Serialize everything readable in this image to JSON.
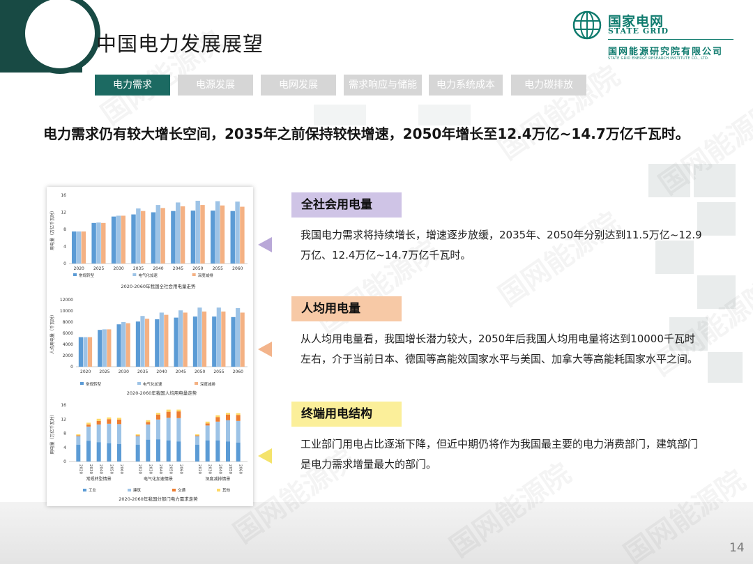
{
  "page": {
    "title": "中国电力发展展望",
    "page_number": "14",
    "headline": "电力需求仍有较大增长空间，2035年之前保持较快增速，2050年增长至12.4万亿~14.7万亿千瓦时。"
  },
  "logo": {
    "company_cn": "国家电网",
    "company_en": "STATE GRID",
    "institute_cn": "国网能源研究院有限公司",
    "institute_en": "STATE GRID ENERGY RESEARCH INSTITUTE CO., LTD."
  },
  "watermark": "国网能源院",
  "tabs": [
    {
      "label": "电力需求",
      "active": true
    },
    {
      "label": "电源发展",
      "active": false
    },
    {
      "label": "电网发展",
      "active": false
    },
    {
      "label": "需求响应与储能",
      "active": false
    },
    {
      "label": "电力系统成本",
      "active": false
    },
    {
      "label": "电力碳排放",
      "active": false
    }
  ],
  "sections": [
    {
      "label": "全社会用电量",
      "color": "#cfc4e6",
      "arrow_color": "#b9a8d8",
      "text": "我国电力需求将持续增长，增速逐步放缓，2035年、2050年分别达到11.5万亿~12.9万亿、12.4万亿~14.7万亿千瓦时。"
    },
    {
      "label": "人均用电量",
      "color": "#f7c9a6",
      "arrow_color": "#f3b48b",
      "text": "从人均用电量看，我国增长潜力较大，2050年后我国人均用电量将达到10000千瓦时左右，介于当前日本、德国等高能效国家水平与美国、加拿大等高能耗国家水平之间。"
    },
    {
      "label": "终端用电结构",
      "color": "#fbef9a",
      "arrow_color": "#f4e36b",
      "text": "工业部门用电占比逐渐下降，但近中期仍将作为我国最主要的电力消费部门，建筑部门是电力需求增量最大的部门。"
    }
  ],
  "colors": {
    "series_blue": "#5b9bd5",
    "series_lightblue": "#9dc3e6",
    "series_orange": "#f4b183",
    "industry": "#5b9bd5",
    "building": "#9dc3e6",
    "transport": "#ed7d31",
    "other": "#ffd966"
  },
  "chart_data": [
    {
      "type": "bar",
      "title": "2020-2060年我国全社会用电量走势",
      "ylabel": "用电量（万亿千瓦时）",
      "ylim": [
        0,
        16
      ],
      "yticks": [
        "0",
        "4",
        "8",
        "12",
        "16"
      ],
      "categories": [
        "2020",
        "2025",
        "2030",
        "2035",
        "2040",
        "2045",
        "2050",
        "2055",
        "2060"
      ],
      "series": [
        {
          "name": "常规转型",
          "values": [
            7.5,
            9.5,
            11,
            11.5,
            12,
            12.3,
            12.4,
            12.4,
            12.3
          ]
        },
        {
          "name": "电气化加速",
          "values": [
            7.5,
            9.6,
            11.2,
            12.9,
            13.7,
            14.3,
            14.7,
            14.6,
            14.5
          ]
        },
        {
          "name": "深度减排",
          "values": [
            7.5,
            9.5,
            11.2,
            12.3,
            13,
            13.4,
            13.7,
            13.6,
            13.3
          ]
        }
      ]
    },
    {
      "type": "bar",
      "title": "2020-2060年我国人均用电量走势",
      "ylabel": "人均用电量（千瓦时）",
      "ylim": [
        0,
        12000
      ],
      "yticks": [
        "0",
        "2000",
        "4000",
        "6000",
        "8000",
        "10000",
        "12000"
      ],
      "categories": [
        "2020",
        "2025",
        "2030",
        "2035",
        "2040",
        "2045",
        "2050",
        "2055",
        "2060"
      ],
      "series": [
        {
          "name": "常规转型",
          "values": [
            5300,
            6600,
            7600,
            8100,
            8500,
            8800,
            9000,
            9000,
            8900
          ]
        },
        {
          "name": "电气化加速",
          "values": [
            5300,
            6700,
            8000,
            9100,
            9700,
            10100,
            10600,
            10600,
            10500
          ]
        },
        {
          "name": "深度减排",
          "values": [
            5300,
            6700,
            7800,
            8600,
            9300,
            9700,
            9900,
            9900,
            9700
          ]
        }
      ]
    },
    {
      "type": "bar",
      "title": "2020-2060年我国分部门电力需求走势",
      "ylabel": "用电量（万亿千瓦时）",
      "ylim": [
        0,
        16
      ],
      "yticks": [
        "0",
        "4",
        "8",
        "12",
        "16"
      ],
      "groups": [
        "常规转型情景",
        "电气化加速情景",
        "深度减排情景"
      ],
      "categories": [
        "2020",
        "2030",
        "2040",
        "2050",
        "2060"
      ],
      "stack_series": [
        "工业",
        "建筑",
        "交通",
        "其他"
      ],
      "stacks": [
        [
          [
            4.8,
            2.4,
            0.2,
            0.3
          ],
          [
            5.9,
            4.0,
            0.6,
            0.5
          ],
          [
            5.5,
            5.0,
            1.0,
            0.6
          ],
          [
            5.2,
            5.5,
            1.3,
            0.5
          ],
          [
            5.0,
            5.6,
            1.3,
            0.5
          ]
        ],
        [
          [
            4.8,
            2.4,
            0.2,
            0.3
          ],
          [
            6.2,
            4.3,
            0.7,
            0.5
          ],
          [
            6.3,
            5.6,
            1.4,
            0.5
          ],
          [
            6.0,
            6.4,
            1.7,
            0.6
          ],
          [
            5.7,
            6.6,
            1.9,
            0.5
          ]
        ],
        [
          [
            4.8,
            2.4,
            0.2,
            0.3
          ],
          [
            6.0,
            4.2,
            0.6,
            0.5
          ],
          [
            6.0,
            5.3,
            1.3,
            0.5
          ],
          [
            5.7,
            6.0,
            1.6,
            0.5
          ],
          [
            5.4,
            6.1,
            1.7,
            0.5
          ]
        ]
      ]
    }
  ]
}
